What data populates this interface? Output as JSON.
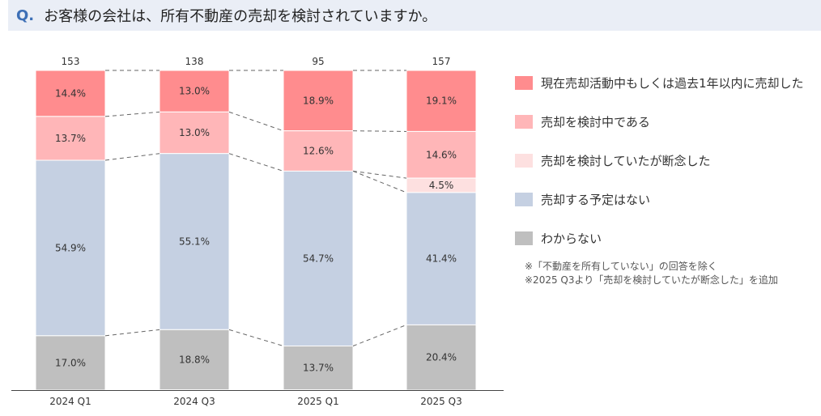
{
  "question": {
    "mark": "Q.",
    "text": "お客様の会社は、所有不動産の売却を検討されていますか。"
  },
  "colors": [
    "#ff8c8e",
    "#ffb6b8",
    "#fde0e0",
    "#c5d0e2",
    "#bfbfbf"
  ],
  "chart_data": {
    "type": "bar",
    "stacked": true,
    "normalized": true,
    "categories": [
      "2024 Q1",
      "2024 Q3",
      "2025 Q1",
      "2025 Q3"
    ],
    "totals": [
      "153",
      "138",
      "95",
      "157"
    ],
    "series": [
      {
        "name": "現在売却活動中もしくは過去1年以内に売却した",
        "values": [
          14.4,
          13.0,
          18.9,
          19.1
        ],
        "labels": [
          "14.4%",
          "13.0%",
          "18.9%",
          "19.1%"
        ]
      },
      {
        "name": "売却を検討中である",
        "values": [
          13.7,
          13.0,
          12.6,
          14.6
        ],
        "labels": [
          "13.7%",
          "13.0%",
          "12.6%",
          "14.6%"
        ]
      },
      {
        "name": "売却を検討していたが断念した",
        "values": [
          0,
          0,
          0,
          4.5
        ],
        "labels": [
          "",
          "",
          "",
          "4.5%"
        ]
      },
      {
        "name": "売却する予定はない",
        "values": [
          54.9,
          55.1,
          54.7,
          41.4
        ],
        "labels": [
          "54.9%",
          "55.1%",
          "54.7%",
          "41.4%"
        ]
      },
      {
        "name": "わからない",
        "values": [
          17.0,
          18.8,
          13.7,
          20.4
        ],
        "labels": [
          "17.0%",
          "18.8%",
          "13.7%",
          "20.4%"
        ]
      }
    ],
    "ylim": [
      0,
      100
    ]
  },
  "notes": [
    "※「不動産を所有していない」の回答を除く",
    "※2025 Q3より「売却を検討していたが断念した」を追加"
  ]
}
